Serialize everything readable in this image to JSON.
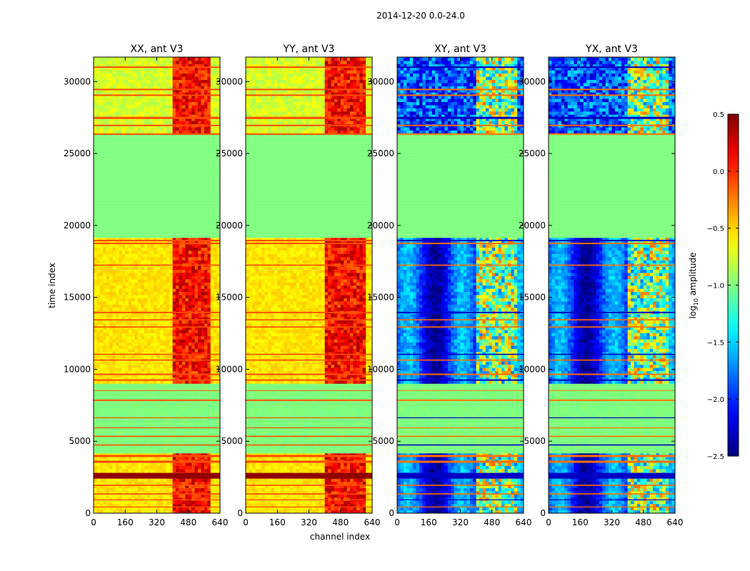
{
  "chart_data": {
    "type": "heatmap",
    "suptitle": "2014-12-20 0.0-24.0",
    "xlabel": "channel index",
    "ylabel": "time index",
    "xlim": [
      0,
      640
    ],
    "ylim": [
      0,
      31700
    ],
    "xticks": [
      "0",
      "160",
      "320",
      "480",
      "640"
    ],
    "yticks": [
      "0",
      "5000",
      "10000",
      "15000",
      "20000",
      "25000",
      "30000"
    ],
    "panels": [
      {
        "title": "XX, ant V3",
        "kind": "auto",
        "rfi_band": [
          390,
          590
        ]
      },
      {
        "title": "YY, ant V3",
        "kind": "auto",
        "rfi_band": [
          400,
          600
        ]
      },
      {
        "title": "XY, ant V3",
        "kind": "cross",
        "rfi_band": [
          390,
          600
        ]
      },
      {
        "title": "YX, ant V3",
        "kind": "cross",
        "rfi_band": [
          390,
          600
        ]
      }
    ],
    "flagged_time_range": [
      19000,
      26200
    ],
    "colorbar": {
      "label": "log10 amplitude",
      "label_main": "log",
      "label_sub": "10",
      "label_rest": " amplitude",
      "range": [
        -2.5,
        0.5
      ],
      "ticks": [
        "0.5",
        "0.0",
        "−0.5",
        "−1.0",
        "−1.5",
        "−2.0",
        "−2.5"
      ],
      "colormap": "jet"
    }
  }
}
